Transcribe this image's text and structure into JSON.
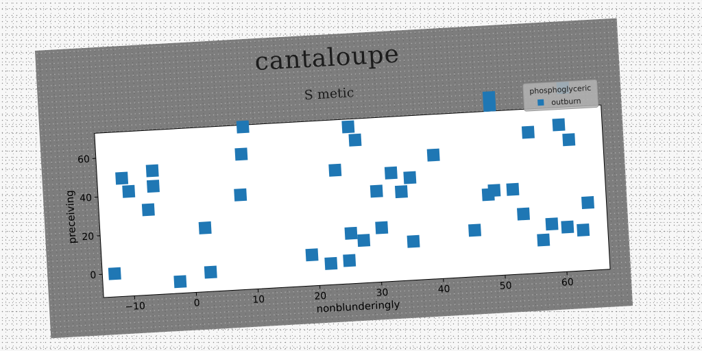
{
  "chart_data": {
    "type": "scatter",
    "title": "cantaloupe",
    "subtitle": "S metic",
    "xlabel": "nonblunderingly",
    "ylabel": "preceiving",
    "xlim": [
      -15,
      67
    ],
    "ylim": [
      -12,
      73
    ],
    "xticks": [
      -10,
      0,
      10,
      20,
      30,
      40,
      50,
      60
    ],
    "yticks": [
      0,
      20,
      40,
      60
    ],
    "legend": {
      "title": "phosphoglyceric",
      "position": "top-right"
    },
    "series": [
      {
        "name": "outburn",
        "color": "#1f77b4",
        "points": [
          [
            -13,
            0
          ],
          [
            -11,
            49
          ],
          [
            -10,
            42
          ],
          [
            -7,
            32
          ],
          [
            -6,
            52
          ],
          [
            -6,
            44
          ],
          [
            -2.5,
            -6
          ],
          [
            2,
            21
          ],
          [
            2.5,
            -2
          ],
          [
            8,
            37
          ],
          [
            8.5,
            58
          ],
          [
            9,
            72
          ],
          [
            19,
            4
          ],
          [
            22,
            -1
          ],
          [
            23.5,
            47
          ],
          [
            25,
            0
          ],
          [
            25.5,
            14
          ],
          [
            26,
            69
          ],
          [
            27,
            62
          ],
          [
            27.5,
            10
          ],
          [
            30,
            35
          ],
          [
            30.5,
            16
          ],
          [
            32.5,
            44
          ],
          [
            34,
            34
          ],
          [
            35.5,
            8
          ],
          [
            35.5,
            41
          ],
          [
            39.5,
            52
          ],
          [
            45.5,
            12
          ],
          [
            48,
            30
          ],
          [
            49,
            32
          ],
          [
            49,
            76
          ],
          [
            49,
            80
          ],
          [
            52,
            32
          ],
          [
            53.5,
            19
          ],
          [
            55,
            61
          ],
          [
            56.5,
            5
          ],
          [
            58,
            13
          ],
          [
            60,
            64
          ],
          [
            60.5,
            11
          ],
          [
            61,
            83
          ],
          [
            61.5,
            56
          ],
          [
            63,
            9
          ],
          [
            64,
            23
          ]
        ]
      }
    ]
  }
}
